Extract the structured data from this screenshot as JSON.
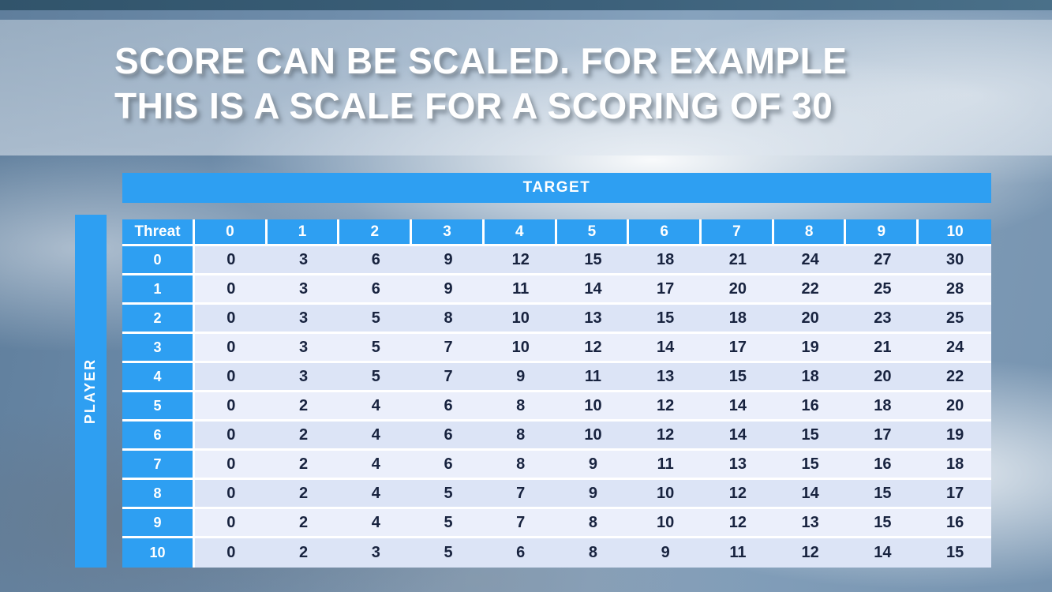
{
  "slide": {
    "title_line1": "SCORE CAN BE SCALED. FOR EXAMPLE",
    "title_line2": "THIS IS A SCALE FOR A SCORING OF 30"
  },
  "matrix": {
    "target_label": "TARGET",
    "player_label": "PLAYER",
    "corner_label": "Threat",
    "column_headers": [
      "0",
      "1",
      "2",
      "3",
      "4",
      "5",
      "6",
      "7",
      "8",
      "9",
      "10"
    ],
    "row_headers": [
      "0",
      "1",
      "2",
      "3",
      "4",
      "5",
      "6",
      "7",
      "8",
      "9",
      "10"
    ],
    "rows": [
      [
        0,
        3,
        6,
        9,
        12,
        15,
        18,
        21,
        24,
        27,
        30
      ],
      [
        0,
        3,
        6,
        9,
        11,
        14,
        17,
        20,
        22,
        25,
        28
      ],
      [
        0,
        3,
        5,
        8,
        10,
        13,
        15,
        18,
        20,
        23,
        25
      ],
      [
        0,
        3,
        5,
        7,
        10,
        12,
        14,
        17,
        19,
        21,
        24
      ],
      [
        0,
        3,
        5,
        7,
        9,
        11,
        13,
        15,
        18,
        20,
        22
      ],
      [
        0,
        2,
        4,
        6,
        8,
        10,
        12,
        14,
        16,
        18,
        20
      ],
      [
        0,
        2,
        4,
        6,
        8,
        10,
        12,
        14,
        15,
        17,
        19
      ],
      [
        0,
        2,
        4,
        6,
        8,
        9,
        11,
        13,
        15,
        16,
        18
      ],
      [
        0,
        2,
        4,
        5,
        7,
        9,
        10,
        12,
        14,
        15,
        17
      ],
      [
        0,
        2,
        4,
        5,
        7,
        8,
        10,
        12,
        13,
        15,
        16
      ],
      [
        0,
        2,
        3,
        5,
        6,
        8,
        9,
        11,
        12,
        14,
        15
      ]
    ]
  },
  "colors": {
    "header_blue": "#2E9FF2",
    "band_dark": "#DCE4F6",
    "band_light": "#EBEFFB",
    "cell_text": "#18233F",
    "top_strip": "#3C607A"
  }
}
